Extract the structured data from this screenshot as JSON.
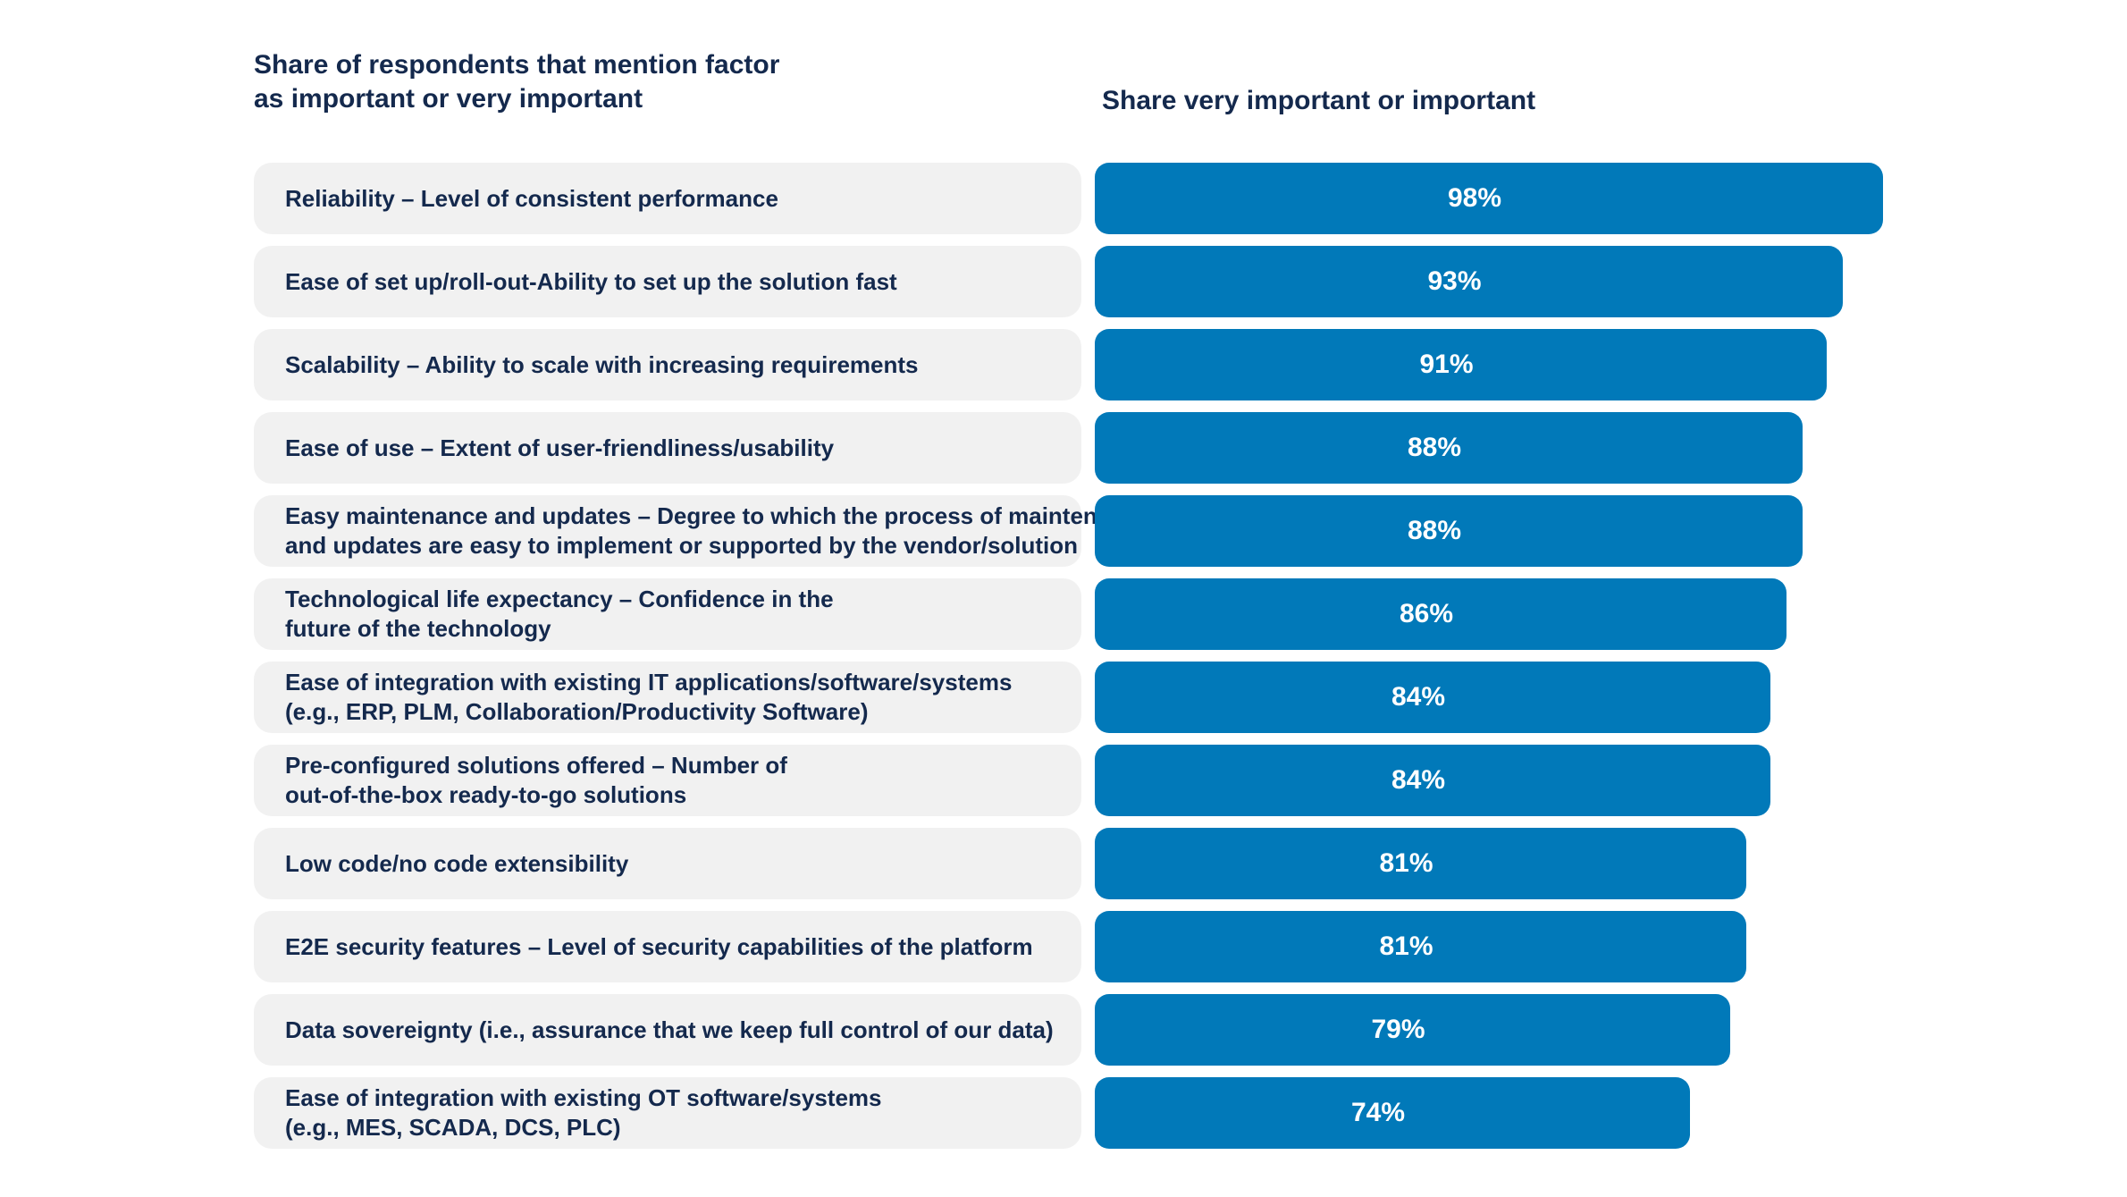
{
  "titles": {
    "left_line1": "Share of respondents that mention factor",
    "left_line2": "as important or very important",
    "right": "Share very important or important"
  },
  "colors": {
    "bar": "#0179b9",
    "label_background": "#f1f1f1",
    "text": "#14294d",
    "value_text": "#ffffff"
  },
  "chart_data": {
    "type": "bar",
    "orientation": "horizontal",
    "unit": "%",
    "xlim": [
      0,
      100
    ],
    "grid": false,
    "categories": [
      [
        "Reliability – Level of consistent performance"
      ],
      [
        "Ease of set up/roll-out-Ability to set up the solution fast"
      ],
      [
        "Scalability – Ability to scale with increasing requirements"
      ],
      [
        "Ease of use – Extent of user-friendliness/usability"
      ],
      [
        "Easy maintenance and updates – Degree to which the process of maintenance",
        "and updates are easy to implement or supported by the vendor/solution"
      ],
      [
        "Technological life expectancy – Confidence in the",
        "future of the technology"
      ],
      [
        "Ease of integration with existing IT applications/software/systems",
        "(e.g., ERP, PLM, Collaboration/Productivity Software)"
      ],
      [
        "Pre-configured solutions offered – Number of",
        "out-of-the-box ready-to-go solutions"
      ],
      [
        "Low code/no code extensibility"
      ],
      [
        "E2E security features – Level of security capabilities of the platform"
      ],
      [
        "Data sovereignty (i.e., assurance that we keep full control of our data)"
      ],
      [
        "Ease of integration with existing OT software/systems",
        "(e.g., MES, SCADA, DCS, PLC)"
      ]
    ],
    "values": [
      98,
      93,
      91,
      88,
      88,
      86,
      84,
      84,
      81,
      81,
      79,
      74
    ],
    "value_labels": [
      "98%",
      "93%",
      "91%",
      "88%",
      "88%",
      "86%",
      "84%",
      "84%",
      "81%",
      "81%",
      "79%",
      "74%"
    ]
  }
}
